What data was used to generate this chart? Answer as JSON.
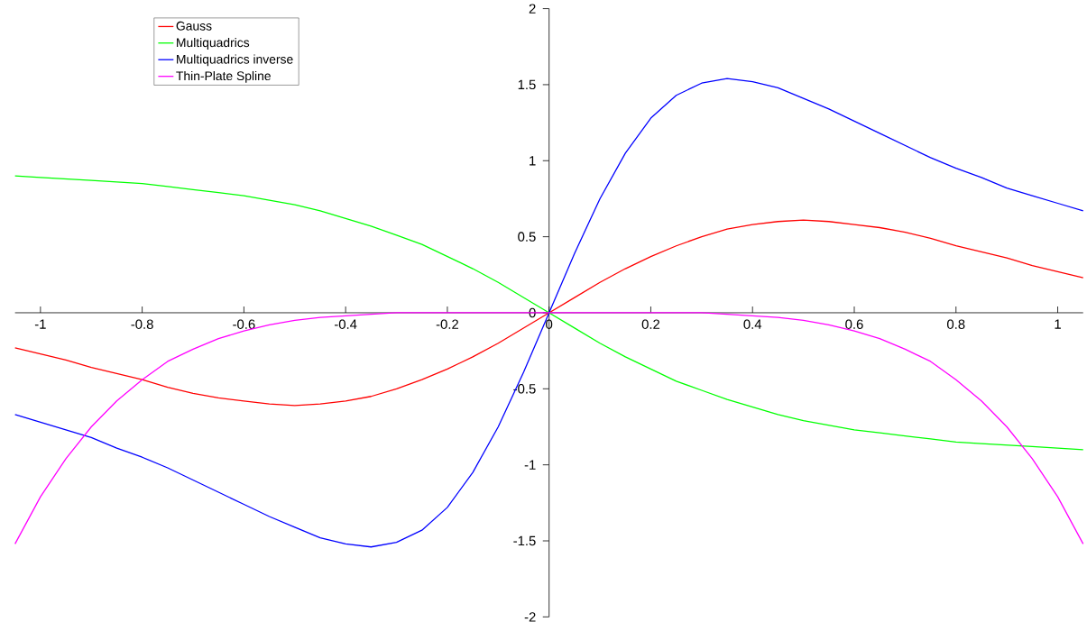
{
  "chart_data": {
    "type": "line",
    "x": [
      -1.05,
      -1.0,
      -0.95,
      -0.9,
      -0.85,
      -0.8,
      -0.75,
      -0.7,
      -0.65,
      -0.6,
      -0.55,
      -0.5,
      -0.45,
      -0.4,
      -0.35,
      -0.3,
      -0.25,
      -0.2,
      -0.15,
      -0.1,
      -0.05,
      0,
      0.05,
      0.1,
      0.15,
      0.2,
      0.25,
      0.3,
      0.35,
      0.4,
      0.45,
      0.5,
      0.55,
      0.6,
      0.65,
      0.7,
      0.75,
      0.8,
      0.85,
      0.9,
      0.95,
      1.0,
      1.05
    ],
    "series": [
      {
        "name": "Gauss",
        "color": "#ff0000",
        "values": [
          -0.23,
          -0.27,
          -0.31,
          -0.36,
          -0.4,
          -0.44,
          -0.49,
          -0.53,
          -0.56,
          -0.58,
          -0.6,
          -0.61,
          -0.6,
          -0.58,
          -0.55,
          -0.5,
          -0.44,
          -0.37,
          -0.29,
          -0.2,
          -0.1,
          0,
          0.1,
          0.2,
          0.29,
          0.37,
          0.44,
          0.5,
          0.55,
          0.58,
          0.6,
          0.61,
          0.6,
          0.58,
          0.56,
          0.53,
          0.49,
          0.44,
          0.4,
          0.36,
          0.31,
          0.27,
          0.23
        ]
      },
      {
        "name": "Multiquadrics",
        "color": "#00ff00",
        "values": [
          0.9,
          0.89,
          0.88,
          0.87,
          0.86,
          0.85,
          0.83,
          0.81,
          0.79,
          0.77,
          0.74,
          0.71,
          0.67,
          0.62,
          0.57,
          0.51,
          0.45,
          0.37,
          0.29,
          0.2,
          0.1,
          0,
          -0.1,
          -0.2,
          -0.29,
          -0.37,
          -0.45,
          -0.51,
          -0.57,
          -0.62,
          -0.67,
          -0.71,
          -0.74,
          -0.77,
          -0.79,
          -0.81,
          -0.83,
          -0.85,
          -0.86,
          -0.87,
          -0.88,
          -0.89,
          -0.9
        ]
      },
      {
        "name": "Multiquadrics inverse",
        "color": "#0000ff",
        "values": [
          -0.67,
          -0.72,
          -0.77,
          -0.82,
          -0.89,
          -0.95,
          -1.02,
          -1.1,
          -1.18,
          -1.26,
          -1.34,
          -1.41,
          -1.48,
          -1.52,
          -1.54,
          -1.51,
          -1.43,
          -1.28,
          -1.05,
          -0.75,
          -0.39,
          0,
          0.39,
          0.75,
          1.05,
          1.28,
          1.43,
          1.51,
          1.54,
          1.52,
          1.48,
          1.41,
          1.34,
          1.26,
          1.18,
          1.1,
          1.02,
          0.95,
          0.89,
          0.82,
          0.77,
          0.72,
          0.67
        ]
      },
      {
        "name": "Thin-Plate Spline",
        "color": "#ff00ff",
        "values": [
          -1.52,
          -1.21,
          -0.96,
          -0.75,
          -0.58,
          -0.44,
          -0.32,
          -0.24,
          -0.17,
          -0.12,
          -0.08,
          -0.05,
          -0.03,
          -0.02,
          -0.01,
          0,
          0,
          0,
          0,
          0,
          0,
          0,
          0,
          0,
          0,
          0,
          0,
          0,
          -0.01,
          -0.02,
          -0.03,
          -0.05,
          -0.08,
          -0.12,
          -0.17,
          -0.24,
          -0.32,
          -0.44,
          -0.58,
          -0.75,
          -0.96,
          -1.21,
          -1.52
        ]
      }
    ],
    "xlim": [
      -1.05,
      1.05
    ],
    "ylim": [
      -2,
      2
    ],
    "xticks": [
      -1,
      -0.8,
      -0.6,
      -0.4,
      -0.2,
      0,
      0.2,
      0.4,
      0.6,
      0.8,
      1
    ],
    "yticks": [
      -2,
      -1.5,
      -1,
      -0.5,
      0,
      0.5,
      1,
      1.5,
      2
    ],
    "grid": false,
    "legend": "top left",
    "marker": "none",
    "line_style": "solid"
  }
}
